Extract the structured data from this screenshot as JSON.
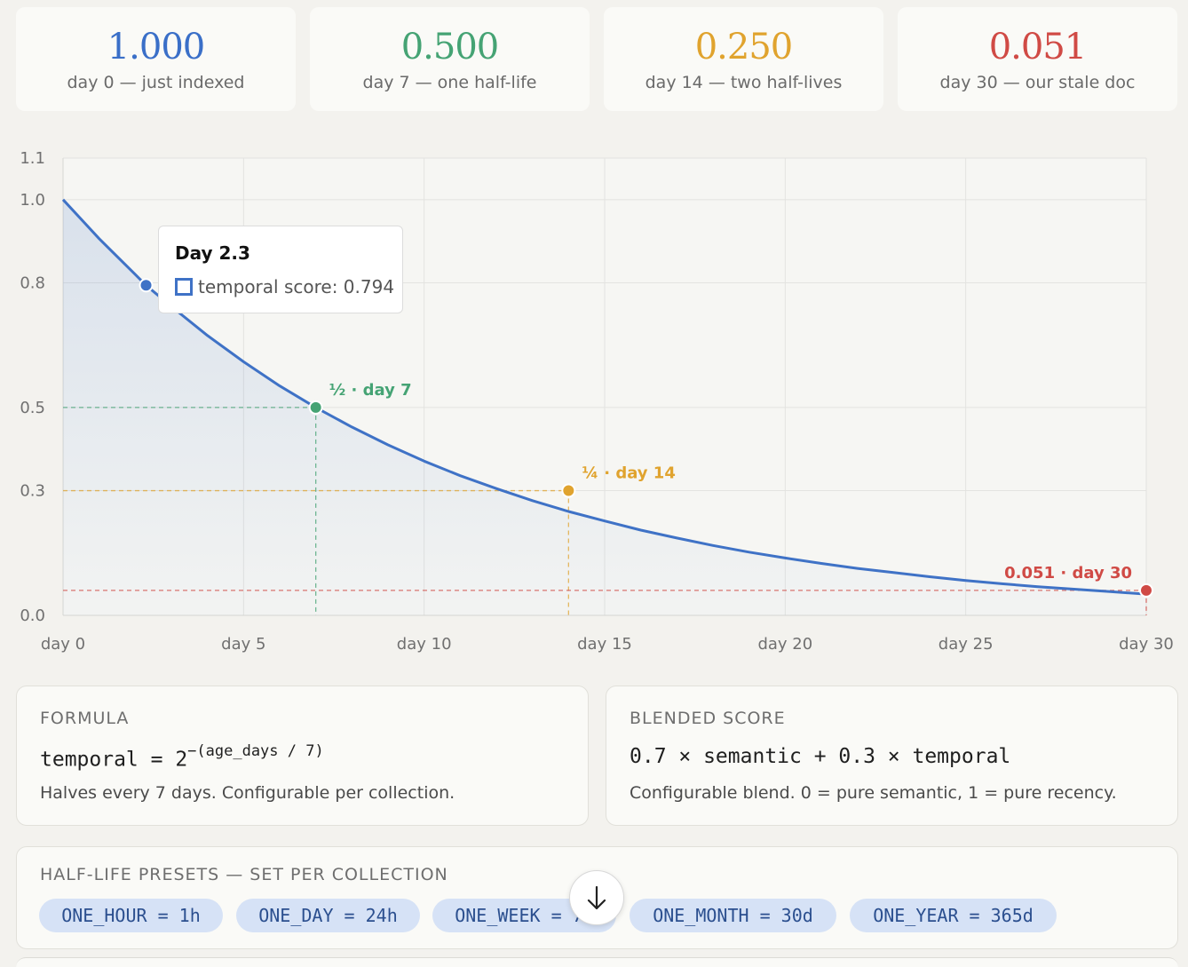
{
  "stats": [
    {
      "value": "1.000",
      "label": "day 0 — just indexed",
      "color": "#3a6fc8"
    },
    {
      "value": "0.500",
      "label": "day 7 — one half-life",
      "color": "#45a374"
    },
    {
      "value": "0.250",
      "label": "day 14 — two half-lives",
      "color": "#e0a32e"
    },
    {
      "value": "0.051",
      "label": "day 30 — our stale doc",
      "color": "#d04a45"
    }
  ],
  "chart_data": {
    "type": "line",
    "x_ticks": [
      "day 0",
      "day 5",
      "day 10",
      "day 15",
      "day 20",
      "day 25",
      "day 30"
    ],
    "y_ticks": [
      "0.0",
      "0.3",
      "0.5",
      "0.8",
      "1.0",
      "1.1"
    ],
    "xlim": [
      0,
      30
    ],
    "ylim": [
      0,
      1.1
    ],
    "grid": true,
    "series": [
      {
        "name": "temporal score",
        "color": "#3f72c6",
        "x": [
          0,
          1,
          2,
          2.3,
          3,
          4,
          5,
          6,
          7,
          8,
          9,
          10,
          11,
          12,
          13,
          14,
          15,
          16,
          17,
          18,
          19,
          20,
          21,
          22,
          23,
          24,
          25,
          26,
          27,
          28,
          29,
          30
        ],
        "y": [
          1.0,
          0.906,
          0.82,
          0.794,
          0.743,
          0.673,
          0.61,
          0.552,
          0.5,
          0.453,
          0.41,
          0.371,
          0.336,
          0.305,
          0.276,
          0.25,
          0.227,
          0.205,
          0.186,
          0.168,
          0.152,
          0.138,
          0.125,
          0.113,
          0.103,
          0.093,
          0.084,
          0.076,
          0.069,
          0.063,
          0.057,
          0.051
        ]
      }
    ],
    "markers": [
      {
        "x": 7,
        "y": 0.5,
        "label": "½ · day 7",
        "color": "#45a374"
      },
      {
        "x": 14,
        "y": 0.3,
        "label": "¼ · day 14",
        "color": "#e0a32e"
      },
      {
        "x": 30,
        "y": 0.06,
        "label": "0.051 · day 30",
        "color": "#d04a45"
      }
    ],
    "hover_point": {
      "x": 2.3,
      "y": 0.794
    }
  },
  "tooltip": {
    "title": "Day 2.3",
    "text": "temporal score: 0.794"
  },
  "formula_card": {
    "heading": "FORMULA",
    "code_base": "temporal = 2",
    "code_exponent": "−(age_days / 7)",
    "note": "Halves every 7 days. Configurable per collection."
  },
  "blend_card": {
    "heading": "BLENDED SCORE",
    "code": "0.7 × semantic + 0.3 × temporal",
    "note": "Configurable blend. 0 = pure semantic, 1 = pure recency."
  },
  "presets": {
    "heading": "HALF-LIFE PRESETS — SET PER COLLECTION",
    "items": [
      "ONE_HOUR = 1h",
      "ONE_DAY = 24h",
      "ONE_WEEK = 7d",
      "ONE_MONTH = 30d",
      "ONE_YEAR = 365d"
    ]
  },
  "icons": {
    "menu": "more-horizontal-icon",
    "scroll": "arrow-down-icon"
  },
  "colors": {
    "accent": "#3f72c6",
    "background": "#f3f2ee"
  }
}
